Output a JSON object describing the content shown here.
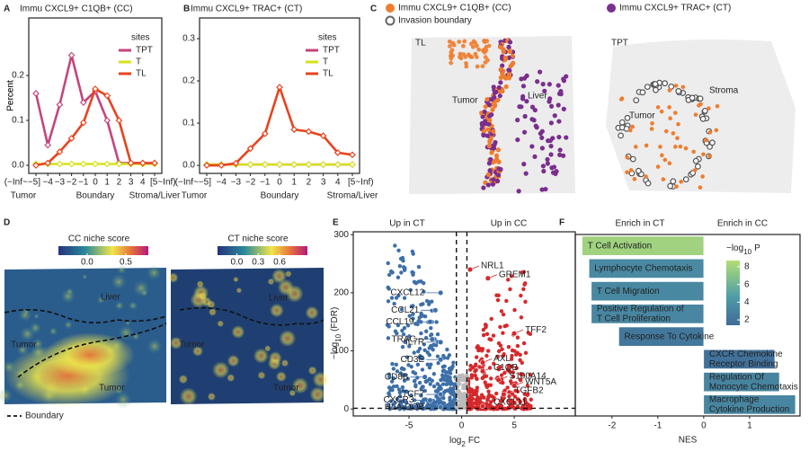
{
  "panel_letters": [
    "A",
    "B",
    "C",
    "D",
    "E",
    "F"
  ],
  "chart_data": [
    {
      "type": "line",
      "title": "Immu CXCL9+ C1QB+ (CC)",
      "y_label": "Percent",
      "categories": [
        "(−Inf~−5]",
        "−4",
        "−3",
        "−2",
        "−1",
        "0",
        "1",
        "2",
        "3",
        "4",
        "[5~Inf)"
      ],
      "region_labels": [
        "Tumor",
        "Boundary",
        "Stroma/Liver"
      ],
      "legend_title": "sites",
      "series": [
        {
          "name": "TPT",
          "color": "#c4457c",
          "values": [
            0.16,
            0.045,
            0.135,
            0.245,
            0.14,
            0.165,
            0.1,
            0.005,
            0.005,
            0.005,
            0.005
          ]
        },
        {
          "name": "T",
          "color": "#d5e21c",
          "values": [
            0.003,
            0.003,
            0.003,
            0.003,
            0.003,
            0.003,
            0.003,
            0.003,
            0.003,
            0.003,
            0.003
          ]
        },
        {
          "name": "TL",
          "color": "#e8431e",
          "values": [
            0.0,
            0.005,
            0.03,
            0.06,
            0.095,
            0.17,
            0.155,
            0.1,
            0.005,
            0.005,
            0.005
          ]
        }
      ],
      "ylim": [
        -0.018,
        0.328
      ],
      "yticks": [
        {
          "value": 0,
          "label": "0.0"
        },
        {
          "value": 0.1,
          "label": "0.1"
        },
        {
          "value": 0.2,
          "label": "0.2"
        }
      ]
    },
    {
      "type": "line",
      "title": "Immu CXCL9+ TRAC+ (CT)",
      "y_label": "Percent",
      "categories": [
        "(−Inf~−5]",
        "−4",
        "−3",
        "−2",
        "−1",
        "0",
        "1",
        "2",
        "3",
        "4",
        "[5~Inf)"
      ],
      "region_labels": [
        "Tumor",
        "Boundary",
        "Stroma/Liver"
      ],
      "legend_title": "sites",
      "series": [
        {
          "name": "TPT",
          "color": "#c4457c",
          "values": [
            0.002,
            0.002,
            0.002,
            0.002,
            0.002,
            0.002,
            0.002,
            0.002,
            0.002,
            0.002,
            0.002
          ]
        },
        {
          "name": "T",
          "color": "#d5e21c",
          "values": [
            0.002,
            0.002,
            0.002,
            0.002,
            0.002,
            0.002,
            0.002,
            0.002,
            0.002,
            0.002,
            0.002
          ]
        },
        {
          "name": "TL",
          "color": "#e8431e",
          "values": [
            0.0,
            0.0,
            0.005,
            0.04,
            0.075,
            0.185,
            0.085,
            0.08,
            0.07,
            0.03,
            0.025
          ]
        }
      ],
      "ylim": [
        -0.019,
        0.349
      ],
      "yticks": [
        {
          "value": 0,
          "label": "0.0"
        },
        {
          "value": 0.1,
          "label": "0.1"
        },
        {
          "value": 0.2,
          "label": "0.2"
        },
        {
          "value": 0.3,
          "label": "0.3"
        }
      ]
    },
    {
      "type": "scatter",
      "headers": [
        "Up in CT",
        "Up in CC"
      ],
      "x_label": [
        "log",
        "2",
        "FC"
      ],
      "y_label": [
        "−log",
        "10",
        "(FDR)"
      ],
      "groups": [
        {
          "color": "#3d6fa8",
          "labels": [
            "CXCL12",
            "CCL21",
            "CCL19",
            "TRAC",
            "IL7R",
            "CD3E",
            "CD8B",
            "TCF7",
            "CXCR3",
            "HLA-DOB"
          ],
          "x": [
            -2.0,
            -2.5,
            -3.0,
            -2.8,
            -2.0,
            -2.0,
            -3.5,
            -2.0,
            -3.0,
            -2.0
          ],
          "y": [
            200,
            170,
            150,
            120,
            115,
            85,
            55,
            25,
            15,
            3
          ]
        },
        {
          "color": "#d6282b",
          "labels": [
            "NRL1",
            "GREM1",
            "TFF2",
            "AXL",
            "C1QB",
            "S100A14",
            "WNT5A",
            "TGFB2",
            "CXCL11"
          ],
          "x": [
            0.8,
            2.5,
            5.0,
            2.0,
            2.0,
            3.5,
            5.0,
            4.0,
            2.0
          ],
          "y": [
            240,
            225,
            130,
            80,
            65,
            50,
            40,
            25,
            5
          ]
        }
      ],
      "vlines": [
        -0.5,
        0.5
      ],
      "hline": 1.3,
      "xlim": [
        -10.3,
        10.8
      ],
      "xticks": [
        -5,
        0,
        5
      ],
      "ylim": [
        -12,
        305
      ],
      "yticks": [
        0,
        100,
        200,
        300
      ]
    },
    {
      "type": "bar",
      "orientation": "horizontal",
      "headers": [
        "Enrich in CT",
        "Enrich in CC"
      ],
      "x_label": "NES",
      "categories": [
        [
          "T Cell Activation"
        ],
        [
          "Lymphocyte Chemotaxis"
        ],
        [
          "T Cell Migration"
        ],
        [
          "Positive Regulation of",
          "T Cell Proliferation"
        ],
        [
          "Response To Cytokine"
        ],
        [
          "CXCR Chemokine",
          "Receptor Binding"
        ],
        [
          "Regulation Of",
          "Monocyte Chemotaxis"
        ],
        [
          "Macrophage",
          "Cytokine Production"
        ]
      ],
      "values": [
        -2.65,
        -2.5,
        -2.45,
        -2.45,
        -1.85,
        1.55,
        1.65,
        2.0
      ],
      "neg_log10_p": [
        8,
        3.6,
        3.5,
        3.4,
        2.4,
        1.9,
        3.2,
        3.3
      ],
      "colorbar_title": [
        "−log",
        "10",
        "P"
      ],
      "colorbar_lim": [
        1.4,
        8.7
      ],
      "colorbar_ticks": [
        2,
        4,
        6,
        8
      ],
      "colorscale": [
        "#3f6a98",
        "#4f9ea8",
        "#b3de75"
      ],
      "xlim": [
        -2.8,
        2.1
      ],
      "xticks": [
        -2,
        -1,
        0,
        1
      ]
    }
  ],
  "panel_c": {
    "legend": [
      "Immu CXCL9+ C1QB+ (CC)",
      "Invasion boundary",
      "Immu CXCL9+ TRAC+ (CT)"
    ],
    "sections": [
      "TL",
      "TPT"
    ],
    "regions": [
      "Tumor",
      "Liver",
      "Tumor",
      "Stroma"
    ]
  },
  "panel_d": {
    "titles": [
      "CC niche score",
      "CT niche score"
    ],
    "colorbars": [
      {
        "lim": [
          -0.37,
          0.79
        ],
        "ticks": [
          {
            "value": 0,
            "label": "0.0"
          },
          {
            "value": 0.5,
            "label": "0.5"
          }
        ]
      },
      {
        "lim": [
          -0.27,
          0.99
        ],
        "ticks": [
          {
            "value": 0,
            "label": "0.0"
          },
          {
            "value": 0.3,
            "label": "0.3"
          },
          {
            "value": 0.6,
            "label": "0.6"
          }
        ]
      }
    ],
    "regions": [
      "Liver",
      "Tumor",
      "Tumor",
      "Liver",
      "Tumor",
      "Tumor"
    ],
    "boundary_label": "Boundary"
  }
}
